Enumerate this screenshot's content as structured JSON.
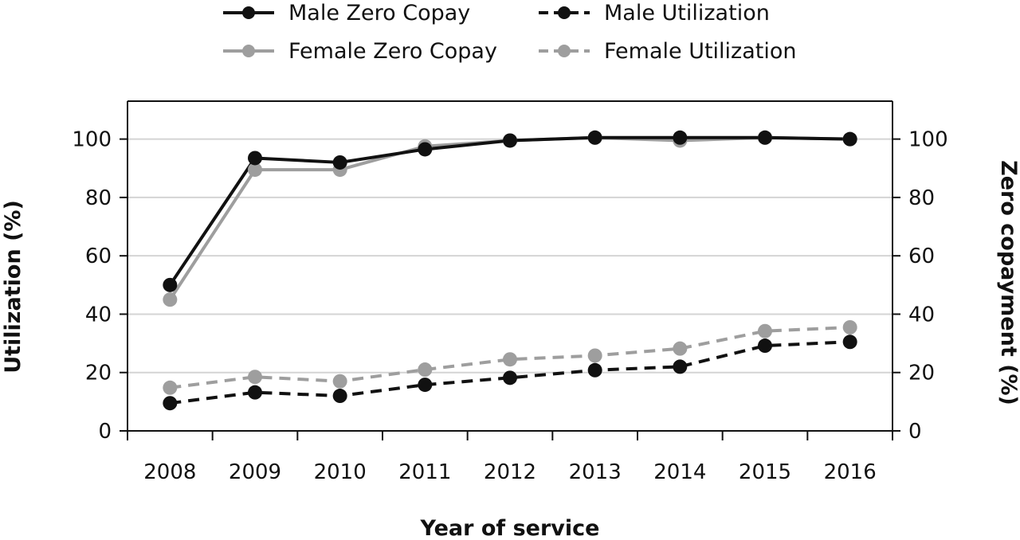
{
  "chart_data": {
    "type": "line",
    "title": "",
    "xlabel": "Year of service",
    "ylabel_left": "Utilization (%)",
    "ylabel_right": "Zero copayment (%)",
    "x": [
      "2008",
      "2009",
      "2010",
      "2011",
      "2012",
      "2013",
      "2014",
      "2015",
      "2016"
    ],
    "ylim_left": [
      0,
      113
    ],
    "ylim_right": [
      0,
      113
    ],
    "yticks": [
      0,
      20,
      40,
      60,
      80,
      100
    ],
    "grid": "horizontal",
    "legend_position": "top",
    "series": [
      {
        "name": "Male Zero Copay",
        "axis": "right",
        "color": "#111111",
        "style": "solid",
        "values": [
          50,
          93.5,
          92,
          96.5,
          99.5,
          100.5,
          100.5,
          100.5,
          100
        ]
      },
      {
        "name": "Female Zero Copay",
        "axis": "right",
        "color": "#9e9e9e",
        "style": "solid",
        "values": [
          45,
          89.5,
          89.5,
          97.5,
          99.5,
          100.5,
          99.5,
          100.5,
          100
        ]
      },
      {
        "name": "Male Utilization",
        "axis": "left",
        "color": "#111111",
        "style": "dashed",
        "values": [
          9.5,
          13.2,
          12,
          15.8,
          18.2,
          20.8,
          22,
          29.2,
          30.5
        ]
      },
      {
        "name": "Female Utilization",
        "axis": "left",
        "color": "#9e9e9e",
        "style": "dashed",
        "values": [
          14.8,
          18.5,
          17,
          21,
          24.5,
          25.8,
          28.2,
          34.2,
          35.5
        ]
      }
    ]
  }
}
